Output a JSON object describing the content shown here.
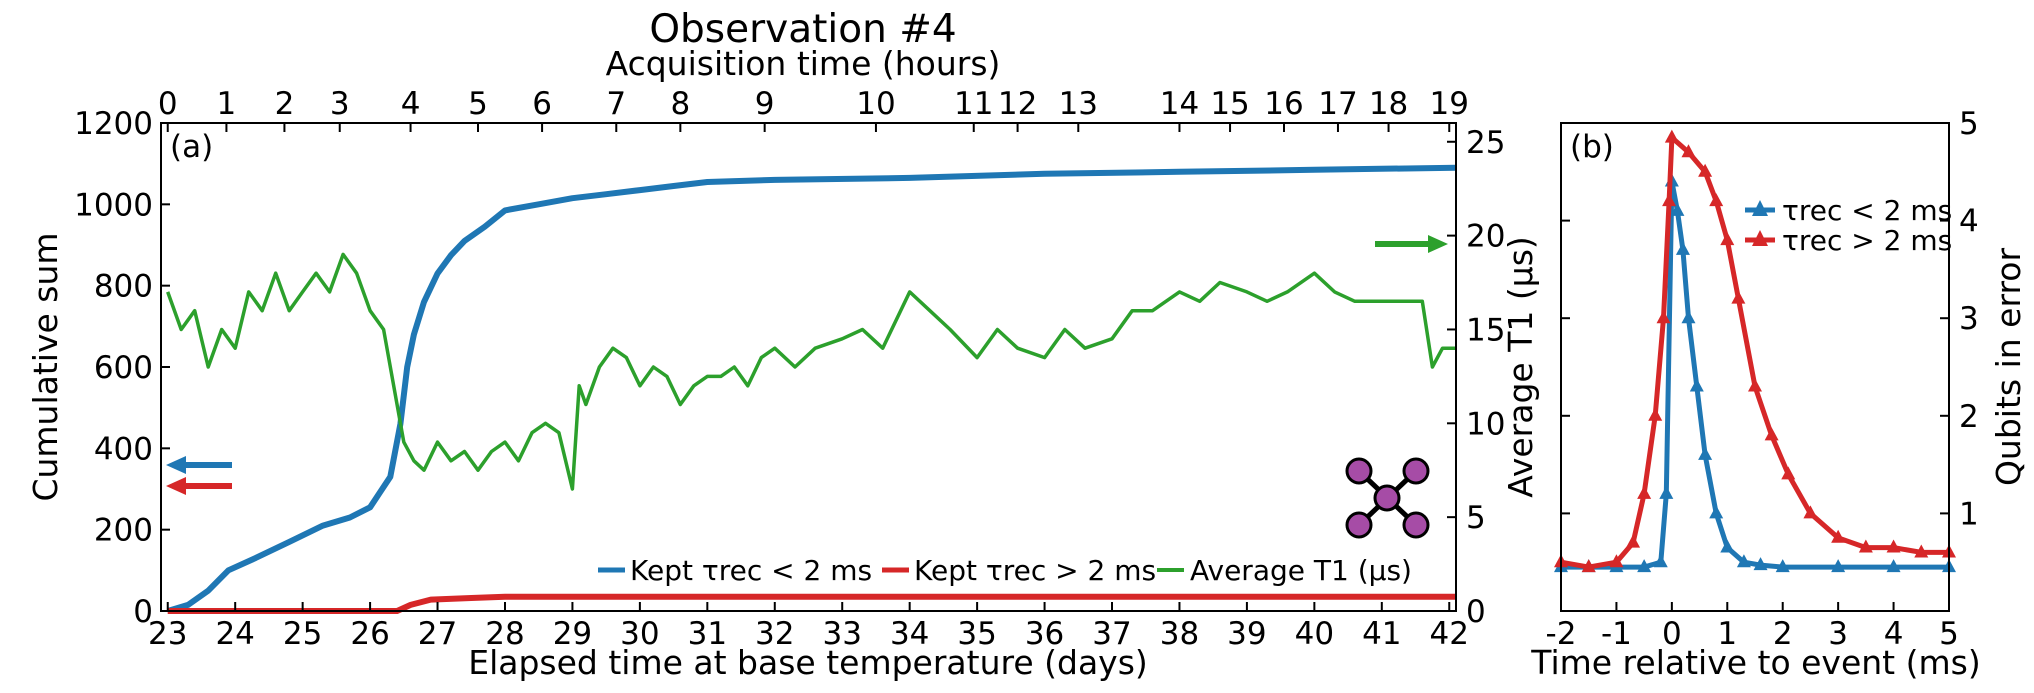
{
  "title": "Observation #4",
  "panel_a_label": "(a)",
  "panel_b_label": "(b)",
  "icon": "qubit-lattice-icon",
  "chart_data": [
    {
      "type": "line",
      "panel": "(a)",
      "xlabel": "Elapsed time at base temperature (days)",
      "ylabel_left": "Cumulative sum",
      "ylabel_right": "Average T1 (µs)",
      "xlabel_top": "Acquisition time (hours)",
      "xlim": [
        22.9,
        42.1
      ],
      "ylim_left": [
        0,
        1200
      ],
      "ylim_right": [
        0,
        26
      ],
      "x_ticks": [
        23,
        24,
        25,
        26,
        27,
        28,
        29,
        30,
        31,
        32,
        33,
        34,
        35,
        36,
        37,
        38,
        39,
        40,
        41,
        42
      ],
      "y_ticks_left": [
        0,
        200,
        400,
        600,
        800,
        1000,
        1200
      ],
      "y_ticks_right": [
        0,
        5,
        10,
        15,
        20,
        25
      ],
      "top_ticks": [
        {
          "label": "0",
          "day": 23.0
        },
        {
          "label": "1",
          "day": 23.87
        },
        {
          "label": "2",
          "day": 24.73
        },
        {
          "label": "3",
          "day": 25.55
        },
        {
          "label": "4",
          "day": 26.6
        },
        {
          "label": "5",
          "day": 27.6
        },
        {
          "label": "6",
          "day": 28.55
        },
        {
          "label": "7",
          "day": 29.65
        },
        {
          "label": "8",
          "day": 30.6
        },
        {
          "label": "9",
          "day": 31.85
        },
        {
          "label": "10",
          "day": 33.5
        },
        {
          "label": "11",
          "day": 34.95
        },
        {
          "label": "12",
          "day": 35.6
        },
        {
          "label": "13",
          "day": 36.5
        },
        {
          "label": "14",
          "day": 38.0
        },
        {
          "label": "15",
          "day": 38.75
        },
        {
          "label": "16",
          "day": 39.55
        },
        {
          "label": "17",
          "day": 40.35
        },
        {
          "label": "18",
          "day": 41.1
        },
        {
          "label": "19",
          "day": 42.0
        }
      ],
      "legend": [
        "Kept τrec < 2 ms",
        "Kept τrec > 2 ms",
        "Average T1 (µs)"
      ],
      "series": [
        {
          "name": "Kept τrec < 2 ms",
          "axis": "left",
          "color": "#1f77b4",
          "x": [
            23.0,
            23.3,
            23.6,
            23.9,
            24.3,
            24.8,
            25.3,
            25.7,
            26.0,
            26.3,
            26.45,
            26.55,
            26.65,
            26.8,
            27.0,
            27.2,
            27.4,
            27.7,
            28.0,
            28.5,
            29.0,
            29.5,
            30.0,
            30.5,
            31.0,
            32.0,
            34.0,
            36.0,
            38.0,
            40.0,
            42.1
          ],
          "values": [
            0,
            15,
            50,
            100,
            130,
            170,
            210,
            230,
            255,
            330,
            460,
            600,
            680,
            760,
            830,
            875,
            910,
            945,
            985,
            1000,
            1015,
            1025,
            1035,
            1045,
            1055,
            1060,
            1065,
            1075,
            1080,
            1085,
            1090
          ]
        },
        {
          "name": "Kept τrec > 2 ms",
          "axis": "left",
          "color": "#d62728",
          "x": [
            23.0,
            26.4,
            26.6,
            26.9,
            27.5,
            28.0,
            42.1
          ],
          "values": [
            0,
            0,
            15,
            28,
            32,
            35,
            35
          ]
        },
        {
          "name": "Average T1 (µs)",
          "axis": "right",
          "color": "#2ca02c",
          "x": [
            23.0,
            23.2,
            23.4,
            23.6,
            23.8,
            24.0,
            24.2,
            24.4,
            24.6,
            24.8,
            25.0,
            25.2,
            25.4,
            25.6,
            25.8,
            26.0,
            26.2,
            26.35,
            26.5,
            26.65,
            26.8,
            27.0,
            27.2,
            27.4,
            27.6,
            27.8,
            28.0,
            28.2,
            28.4,
            28.6,
            28.8,
            29.0,
            29.1,
            29.2,
            29.4,
            29.6,
            29.8,
            30.0,
            30.2,
            30.4,
            30.6,
            30.8,
            31.0,
            31.2,
            31.4,
            31.6,
            31.8,
            32.0,
            32.3,
            32.6,
            33.0,
            33.3,
            33.6,
            34.0,
            34.3,
            34.6,
            35.0,
            35.3,
            35.6,
            36.0,
            36.3,
            36.6,
            37.0,
            37.3,
            37.6,
            38.0,
            38.3,
            38.6,
            39.0,
            39.3,
            39.6,
            40.0,
            40.3,
            40.6,
            41.0,
            41.3,
            41.6,
            41.75,
            41.9,
            42.1
          ],
          "values": [
            17,
            15,
            16,
            13,
            15,
            14,
            17,
            16,
            18,
            16,
            17,
            18,
            17,
            19,
            18,
            16,
            15,
            12,
            9,
            8,
            7.5,
            9,
            8,
            8.5,
            7.5,
            8.5,
            9,
            8,
            9.5,
            10,
            9.5,
            6.5,
            12,
            11,
            13,
            14,
            13.5,
            12,
            13,
            12.5,
            11,
            12,
            12.5,
            12.5,
            13,
            12,
            13.5,
            14,
            13,
            14,
            14.5,
            15,
            14,
            17,
            16,
            15,
            13.5,
            15,
            14,
            13.5,
            15,
            14,
            14.5,
            16,
            16,
            17,
            16.5,
            17.5,
            17,
            16.5,
            17,
            18,
            17,
            16.5,
            16.5,
            16.5,
            16.5,
            13,
            14,
            14
          ]
        }
      ]
    },
    {
      "type": "line",
      "panel": "(b)",
      "xlabel": "Time relative to event (ms)",
      "ylabel": "Qubits in error",
      "xlim": [
        -2,
        5
      ],
      "ylim": [
        0,
        5
      ],
      "x_tick_labels": [
        "-2",
        "-1",
        "0",
        "1",
        "2",
        "3",
        "4",
        "5"
      ],
      "y_ticks": [
        1,
        2,
        3,
        4,
        5
      ],
      "legend": [
        "τrec < 2 ms",
        "τrec > 2 ms"
      ],
      "series": [
        {
          "name": "τrec < 2 ms",
          "color": "#1f77b4",
          "x": [
            -2.0,
            -1.5,
            -1.0,
            -0.5,
            -0.2,
            -0.1,
            0.0,
            0.1,
            0.2,
            0.3,
            0.45,
            0.6,
            0.8,
            1.0,
            1.3,
            1.6,
            2.0,
            3.0,
            4.0,
            5.0
          ],
          "values": [
            0.45,
            0.45,
            0.45,
            0.45,
            0.5,
            1.2,
            4.4,
            4.1,
            3.7,
            3.0,
            2.3,
            1.6,
            1.0,
            0.65,
            0.5,
            0.47,
            0.45,
            0.45,
            0.45,
            0.45
          ]
        },
        {
          "name": "τrec > 2 ms",
          "color": "#d62728",
          "x": [
            -2.0,
            -1.5,
            -1.0,
            -0.7,
            -0.5,
            -0.3,
            -0.15,
            -0.05,
            0.0,
            0.3,
            0.6,
            0.8,
            1.0,
            1.2,
            1.5,
            1.8,
            2.1,
            2.5,
            3.0,
            3.5,
            4.0,
            4.5,
            5.0
          ],
          "values": [
            0.5,
            0.45,
            0.5,
            0.7,
            1.2,
            2.0,
            3.0,
            4.2,
            4.85,
            4.7,
            4.5,
            4.2,
            3.8,
            3.2,
            2.3,
            1.8,
            1.4,
            1.0,
            0.75,
            0.65,
            0.65,
            0.6,
            0.6
          ]
        }
      ]
    }
  ]
}
